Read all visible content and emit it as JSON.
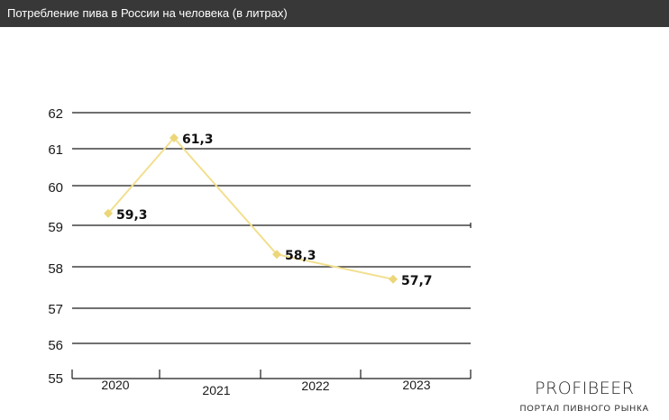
{
  "header": {
    "title": "Потребление пива в России на человека (в литрах)"
  },
  "brand": {
    "name": "PROFIBEER",
    "tagline": "ПОРТАЛ ПИВНОГО РЫНКА"
  },
  "colors": {
    "header_bg": "#383838",
    "line": "#f2df8e",
    "marker": "#ecd67a",
    "grid": "#1a1a1a"
  },
  "chart_data": {
    "type": "line",
    "title": "Потребление пива в России на человека (в литрах)",
    "categories": [
      "2020",
      "2021",
      "2022",
      "2023"
    ],
    "series": [
      {
        "values": [
          59.3,
          61.3,
          58.3,
          57.7
        ],
        "labels": [
          "59,3",
          "61,3",
          "58,3",
          "57,7"
        ]
      }
    ],
    "yticks": [
      "55",
      "56",
      "57",
      "58",
      "59",
      "60",
      "61",
      "62"
    ],
    "ylim": [
      55,
      62
    ],
    "grid": true,
    "legend": "none"
  }
}
